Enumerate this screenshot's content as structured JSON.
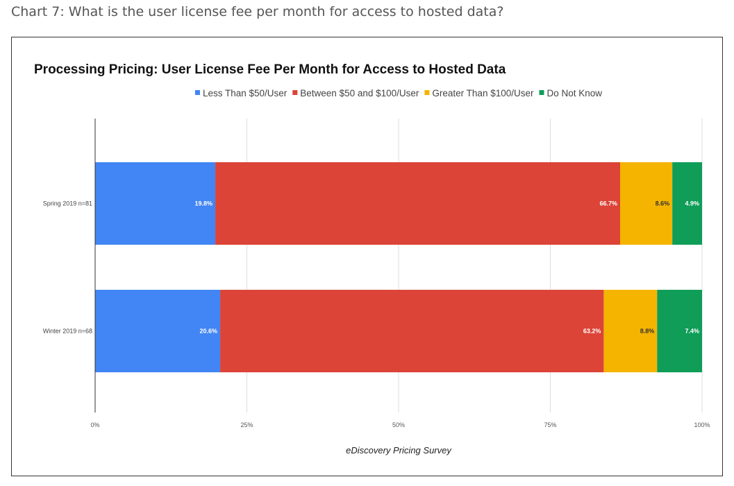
{
  "caption": "Chart 7: What is the user license fee per month for access to hosted data?",
  "chart_data": {
    "type": "bar",
    "orientation": "horizontal",
    "stacked": true,
    "title": "Processing Pricing: User License Fee Per Month for Access to Hosted Data",
    "xlabel": "eDiscovery Pricing Survey",
    "ylabel": "",
    "xlim": [
      0,
      100
    ],
    "x_ticks": [
      "0%",
      "25%",
      "50%",
      "75%",
      "100%"
    ],
    "categories": [
      "Spring 2019 n=81",
      "Winter 2019 n=68"
    ],
    "series": [
      {
        "name": "Less Than $50/User",
        "color": "#4285f4",
        "label_color": "#ffffff",
        "values": [
          19.8,
          20.6
        ],
        "labels": [
          "19.8%",
          "20.6%"
        ]
      },
      {
        "name": "Between $50 and $100/User",
        "color": "#db4437",
        "label_color": "#ffffff",
        "values": [
          66.7,
          63.2
        ],
        "labels": [
          "66.7%",
          "63.2%"
        ]
      },
      {
        "name": "Greater Than $100/User",
        "color": "#f4b400",
        "label_color": "#333333",
        "values": [
          8.6,
          8.8
        ],
        "labels": [
          "8.6%",
          "8.8%"
        ]
      },
      {
        "name": "Do Not Know",
        "color": "#0f9d58",
        "label_color": "#ffffff",
        "values": [
          4.9,
          7.4
        ],
        "labels": [
          "4.9%",
          "7.4%"
        ]
      }
    ],
    "legend_position": "top",
    "grid": true
  }
}
